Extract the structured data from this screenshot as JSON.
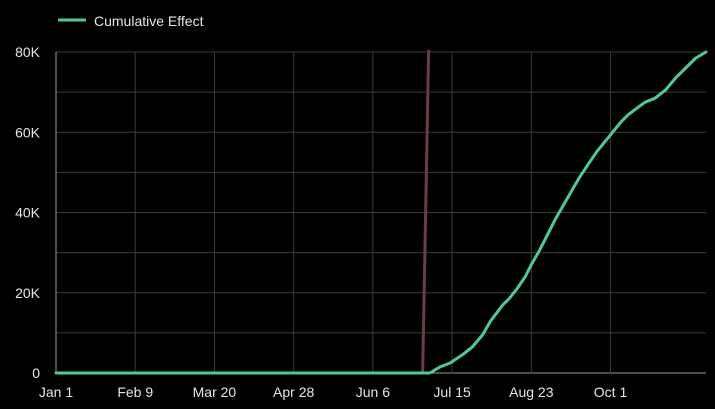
{
  "chart_data": {
    "type": "line",
    "legend": {
      "placement": "top-left",
      "entries": [
        "Cumulative Effect"
      ]
    },
    "x_ticks": [
      "Jan 1",
      "Feb 9",
      "Mar 20",
      "Apr 28",
      "Jun 6",
      "Jul 15",
      "Aug 23",
      "Oct 1"
    ],
    "y_ticks": [
      "0",
      "20K",
      "40K",
      "60K",
      "80K"
    ],
    "ylim": [
      0,
      80000
    ],
    "xlim": [
      "Jan 1",
      "Nov 17"
    ],
    "grid": true,
    "event_marker": {
      "date": "Jul 1",
      "color": "#6b3a55"
    },
    "series": [
      {
        "name": "Cumulative Effect",
        "color": "#4fc99a",
        "x": [
          "Jan 1",
          "Jul 1",
          "Jul 4",
          "Jul 9",
          "Jul 14",
          "Jul 20",
          "Jul 25",
          "Jul 30",
          "Aug 3",
          "Aug 6",
          "Aug 9",
          "Aug 12",
          "Aug 16",
          "Aug 20",
          "Aug 23",
          "Aug 27",
          "Aug 31",
          "Sep 4",
          "Sep 8",
          "Sep 12",
          "Sep 16",
          "Sep 20",
          "Sep 24",
          "Sep 28",
          "Oct 2",
          "Oct 6",
          "Oct 10",
          "Oct 14",
          "Oct 18",
          "Oct 23",
          "Oct 28",
          "Nov 2",
          "Nov 8",
          "Nov 12",
          "Nov 17"
        ],
        "values": [
          0,
          0,
          0,
          1500,
          2500,
          4500,
          6500,
          9500,
          13000,
          15000,
          17000,
          18500,
          21000,
          24000,
          27000,
          30500,
          34500,
          38500,
          42000,
          45500,
          49000,
          52000,
          55000,
          57500,
          60000,
          62500,
          64500,
          66000,
          67500,
          68500,
          70500,
          73500,
          76500,
          78500,
          80000
        ]
      }
    ]
  }
}
